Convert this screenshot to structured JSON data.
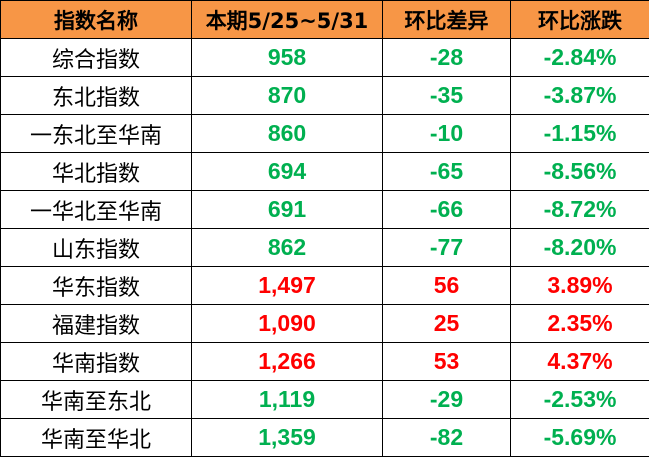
{
  "colors": {
    "header_bg": "#F79646",
    "up": "#FF0000",
    "down": "#00B050"
  },
  "headers": [
    "指数名称",
    "本期5/25~5/31",
    "环比差异",
    "环比涨跌"
  ],
  "rows": [
    {
      "name": "综合指数",
      "value": "958",
      "diff": "-28",
      "pct": "-2.84%",
      "trend": "down"
    },
    {
      "name": "东北指数",
      "value": "870",
      "diff": "-35",
      "pct": "-3.87%",
      "trend": "down"
    },
    {
      "name": "一东北至华南",
      "value": "860",
      "diff": "-10",
      "pct": "-1.15%",
      "trend": "down"
    },
    {
      "name": "华北指数",
      "value": "694",
      "diff": "-65",
      "pct": "-8.56%",
      "trend": "down"
    },
    {
      "name": "一华北至华南",
      "value": "691",
      "diff": "-66",
      "pct": "-8.72%",
      "trend": "down"
    },
    {
      "name": "山东指数",
      "value": "862",
      "diff": "-77",
      "pct": "-8.20%",
      "trend": "down"
    },
    {
      "name": "华东指数",
      "value": "1,497",
      "diff": "56",
      "pct": "3.89%",
      "trend": "up"
    },
    {
      "name": "福建指数",
      "value": "1,090",
      "diff": "25",
      "pct": "2.35%",
      "trend": "up"
    },
    {
      "name": "华南指数",
      "value": "1,266",
      "diff": "53",
      "pct": "4.37%",
      "trend": "up"
    },
    {
      "name": "华南至东北",
      "value": "1,119",
      "diff": "-29",
      "pct": "-2.53%",
      "trend": "down"
    },
    {
      "name": "华南至华北",
      "value": "1,359",
      "diff": "-82",
      "pct": "-5.69%",
      "trend": "down"
    }
  ]
}
